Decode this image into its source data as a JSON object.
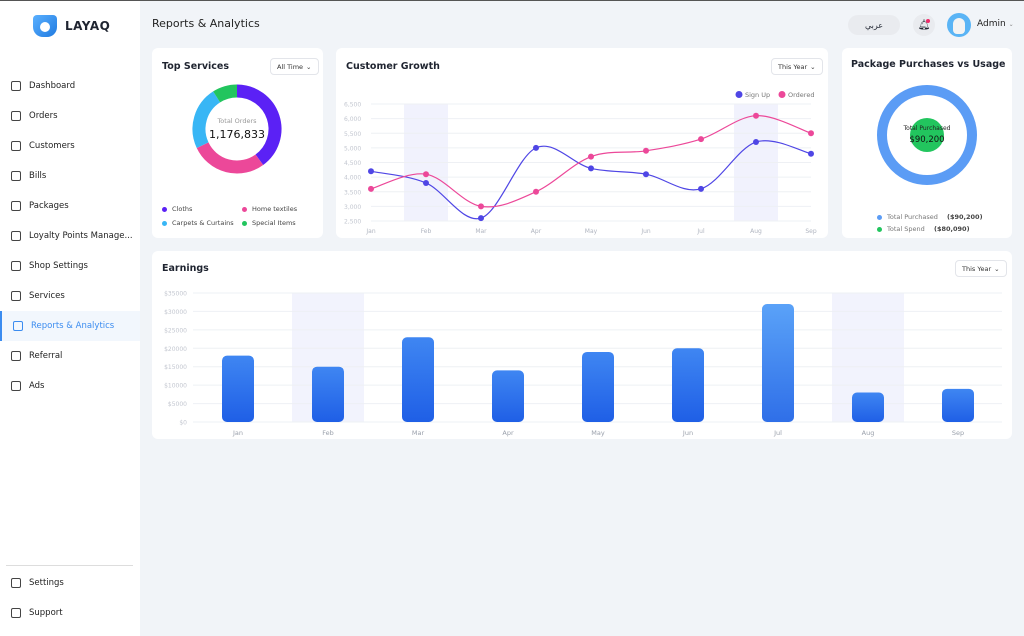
{
  "brand": "LAYAQ",
  "page_title": "Reports & Analytics",
  "header": {
    "language": "عربي",
    "user": "Admin"
  },
  "sidebar": {
    "items": [
      {
        "label": "Dashboard",
        "icon": "grid-icon"
      },
      {
        "label": "Orders",
        "icon": "clipboard-icon"
      },
      {
        "label": "Customers",
        "icon": "id-card-icon"
      },
      {
        "label": "Bills",
        "icon": "dollar-icon"
      },
      {
        "label": "Packages",
        "icon": "percent-icon"
      },
      {
        "label": "Loyalty Points Manage...",
        "icon": "award-icon"
      },
      {
        "label": "Shop Settings",
        "icon": "shop-icon"
      },
      {
        "label": "Services",
        "icon": "briefcase-icon"
      },
      {
        "label": "Reports & Analytics",
        "icon": "chart-icon",
        "active": true
      },
      {
        "label": "Referral",
        "icon": "referral-icon"
      },
      {
        "label": "Ads",
        "icon": "megaphone-icon"
      }
    ],
    "bottom": [
      {
        "label": "Settings",
        "icon": "gear-icon"
      },
      {
        "label": "Support",
        "icon": "headset-icon"
      }
    ]
  },
  "colors": {
    "accent": "#3b8cf0",
    "purple": "#5b21f5",
    "pink": "#ec4899",
    "sky": "#38b6f5",
    "green": "#22c55e",
    "signup": "#4f46e5",
    "ordered": "#ec4899",
    "bar": "#2f6fe8"
  },
  "top_services": {
    "title": "Top Services",
    "filter": "All Time",
    "center_label": "Total Orders",
    "center_value": "1,176,833"
  },
  "customer_growth": {
    "title": "Customer Growth",
    "filter": "This Year"
  },
  "package": {
    "title": "Package Purchases vs Usage",
    "center_label": "Total Purchased",
    "center_value": "$90,200",
    "legend": [
      {
        "label": "Total Purchased",
        "value": "($90,200)",
        "color": "#5b9cf5"
      },
      {
        "label": "Total Spend",
        "value": "($80,090)",
        "color": "#22c55e"
      }
    ]
  },
  "earnings": {
    "title": "Earnings",
    "filter": "This Year"
  },
  "chart_data": [
    {
      "type": "pie",
      "title": "Top Services",
      "categories": [
        "Cloths",
        "Home textiles",
        "Carpets & Curtains",
        "Special Items"
      ],
      "values": [
        40,
        28,
        23,
        9
      ],
      "colors": [
        "#5b21f5",
        "#ec4899",
        "#38b6f5",
        "#22c55e"
      ]
    },
    {
      "type": "line",
      "title": "Customer Growth",
      "categories": [
        "Jan",
        "Feb",
        "Mar",
        "Apr",
        "May",
        "Jun",
        "Jul",
        "Aug",
        "Sep"
      ],
      "series": [
        {
          "name": "Sign Up",
          "values": [
            4200,
            3800,
            2600,
            5000,
            4300,
            4100,
            3600,
            5200,
            4800
          ],
          "color": "#4f46e5"
        },
        {
          "name": "Ordered",
          "values": [
            3600,
            4100,
            3000,
            3500,
            4700,
            4900,
            5300,
            6100,
            5500
          ],
          "color": "#ec4899"
        }
      ],
      "yticks": [
        "2,500",
        "3,000",
        "3,500",
        "4,000",
        "4,500",
        "5,000",
        "5,500",
        "6,000",
        "6,500"
      ],
      "ylim": [
        2500,
        6500
      ],
      "highlighted": [
        "Feb",
        "Aug"
      ],
      "legend": "top-right"
    },
    {
      "type": "pie",
      "title": "Package Purchases vs Usage",
      "categories": [
        "Total Purchased",
        "Total Spend"
      ],
      "values": [
        90200,
        80090
      ]
    },
    {
      "type": "bar",
      "title": "Earnings",
      "categories": [
        "Jan",
        "Feb",
        "Mar",
        "Apr",
        "May",
        "Jun",
        "Jul",
        "Aug",
        "Sep"
      ],
      "values": [
        18000,
        15000,
        23000,
        14000,
        19000,
        20000,
        32000,
        8000,
        9000
      ],
      "yticks": [
        "$0",
        "$5000",
        "$10000",
        "$15000",
        "$20000",
        "$25000",
        "$30000",
        "$35000"
      ],
      "ylim": [
        0,
        35000
      ],
      "highlighted": [
        "Feb",
        "Aug"
      ]
    }
  ]
}
